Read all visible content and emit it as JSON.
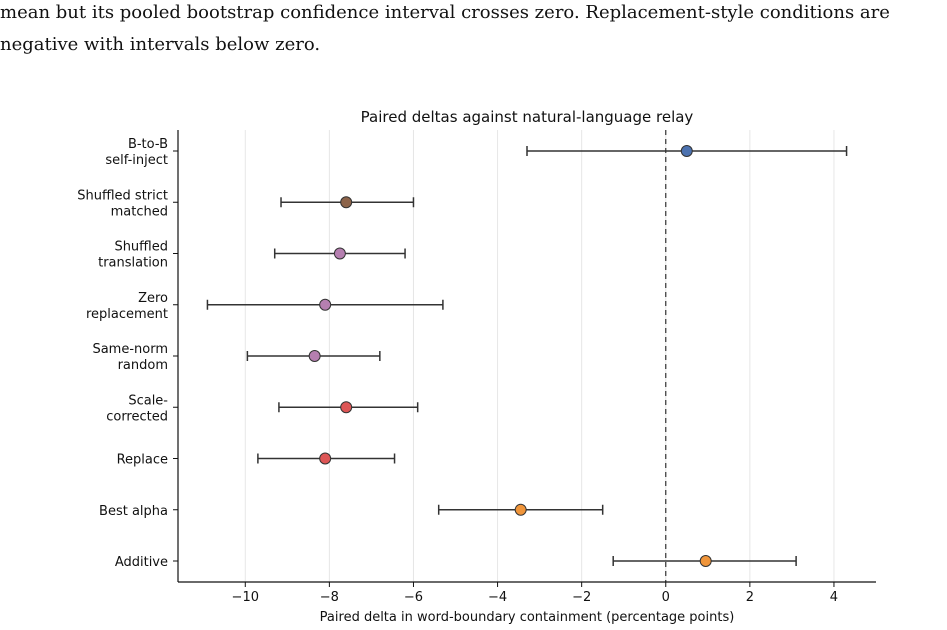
{
  "caption": {
    "line1": "mean but its pooled bootstrap confidence interval crosses zero. Replacement-style conditions are",
    "line2": "negative with intervals below zero."
  },
  "chart_data": {
    "type": "scatter",
    "title": "Paired deltas against natural-language relay",
    "xlabel": "Paired delta in word-boundary containment (percentage points)",
    "ylabel": "",
    "xlim": [
      -11.6,
      5.0
    ],
    "xticks": [
      -10,
      -8,
      -6,
      -4,
      -2,
      0,
      2,
      4
    ],
    "xtick_labels": [
      "−10",
      "−8",
      "−6",
      "−4",
      "−2",
      "0",
      "2",
      "4"
    ],
    "grid": "vertical",
    "reference_line": 0,
    "categories": [
      {
        "label_lines": [
          "B-to-B",
          "self-inject"
        ],
        "value": 0.5,
        "ci": [
          -3.3,
          4.3
        ],
        "color": "#4c72b0"
      },
      {
        "label_lines": [
          "Shuffled strict",
          "matched"
        ],
        "value": -7.6,
        "ci": [
          -9.15,
          -6.0
        ],
        "color": "#8c6349"
      },
      {
        "label_lines": [
          "Shuffled",
          "translation"
        ],
        "value": -7.75,
        "ci": [
          -9.3,
          -6.2
        ],
        "color": "#b57fb0"
      },
      {
        "label_lines": [
          "Zero",
          "replacement"
        ],
        "value": -8.1,
        "ci": [
          -10.9,
          -5.3
        ],
        "color": "#b57fb0"
      },
      {
        "label_lines": [
          "Same-norm",
          "random"
        ],
        "value": -8.35,
        "ci": [
          -9.95,
          -6.8
        ],
        "color": "#b57fb0"
      },
      {
        "label_lines": [
          "Scale-",
          "corrected"
        ],
        "value": -7.6,
        "ci": [
          -9.2,
          -5.9
        ],
        "color": "#dd5555"
      },
      {
        "label_lines": [
          "Replace"
        ],
        "value": -8.1,
        "ci": [
          -9.7,
          -6.45
        ],
        "color": "#dd5555"
      },
      {
        "label_lines": [
          "Best alpha"
        ],
        "value": -3.45,
        "ci": [
          -5.4,
          -1.5
        ],
        "color": "#f0953a"
      },
      {
        "label_lines": [
          "Additive"
        ],
        "value": 0.95,
        "ci": [
          -1.25,
          3.1
        ],
        "color": "#f0953a"
      }
    ]
  }
}
